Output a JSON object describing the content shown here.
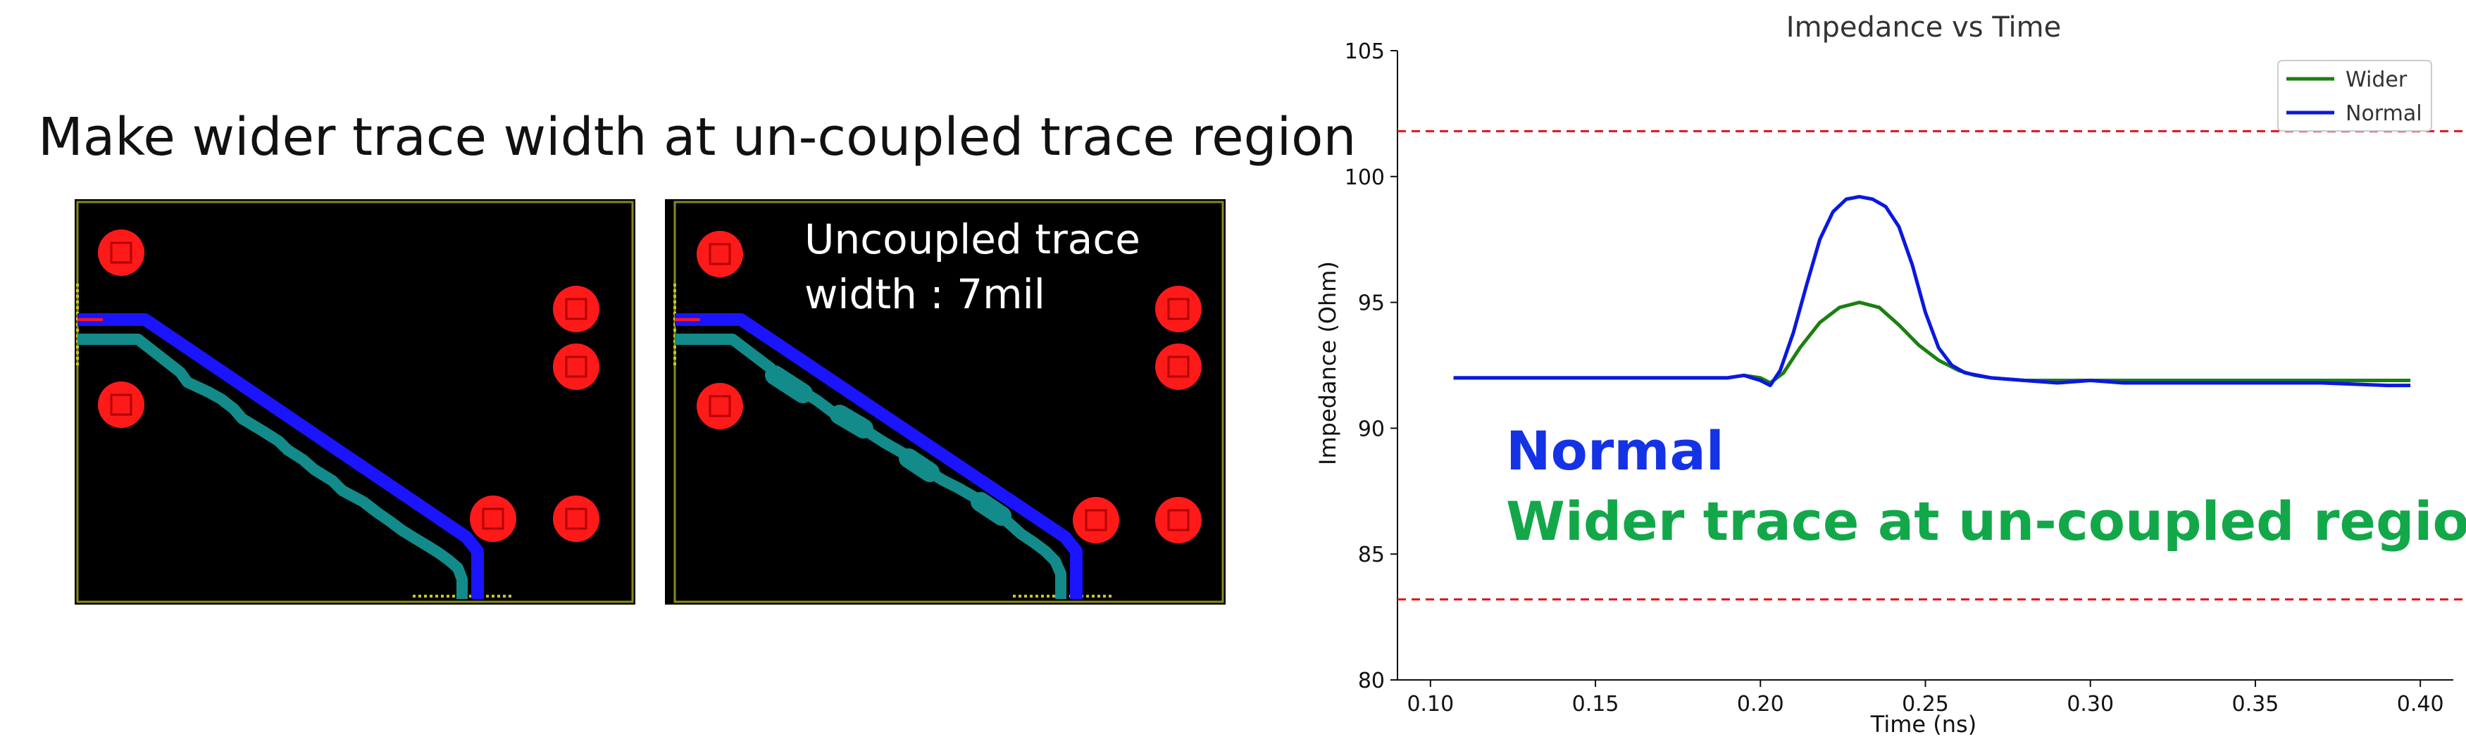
{
  "slide": {
    "title": "Make wider trace width at un-coupled trace region"
  },
  "pcb_views": [
    {
      "id": "left",
      "note": ""
    },
    {
      "id": "right",
      "note_line1": "Uncoupled trace",
      "note_line2": "width : 7mil"
    }
  ],
  "colors": {
    "pad": "#ff1a1a",
    "normal_trace": "#1a14ff",
    "wider_trace": "#138b8b",
    "board": "#000000",
    "outline": "#8a8a1a",
    "limit_line": "#e0141e",
    "series_wider": "#1b7f12",
    "series_normal": "#0b18e0",
    "label_normal": "#1432e6",
    "label_wider": "#12a849"
  },
  "chart_data": {
    "type": "line",
    "title": "Impedance vs Time",
    "xlabel": "Time (ns)",
    "ylabel": "Impedance (Ohm)",
    "xlim": [
      0.09,
      0.41
    ],
    "ylim": [
      80,
      105
    ],
    "xticks": [
      "0.10",
      "0.15",
      "0.20",
      "0.25",
      "0.30",
      "0.35",
      "0.40"
    ],
    "yticks": [
      "80",
      "85",
      "90",
      "95",
      "100",
      "105"
    ],
    "legend_position": "top-right",
    "grid": false,
    "reference_lines": [
      101.8,
      83.2
    ],
    "series": [
      {
        "name": "Wider",
        "x": [
          0.107,
          0.15,
          0.18,
          0.19,
          0.195,
          0.2,
          0.203,
          0.207,
          0.212,
          0.218,
          0.224,
          0.23,
          0.236,
          0.242,
          0.248,
          0.254,
          0.26,
          0.265,
          0.27,
          0.28,
          0.29,
          0.3,
          0.31,
          0.32,
          0.33,
          0.35,
          0.37,
          0.397
        ],
        "y": [
          92.0,
          92.0,
          92.0,
          92.0,
          92.1,
          92.0,
          91.8,
          92.2,
          93.2,
          94.2,
          94.8,
          95.0,
          94.8,
          94.1,
          93.3,
          92.7,
          92.3,
          92.1,
          92.0,
          91.9,
          91.9,
          91.9,
          91.9,
          91.9,
          91.9,
          91.9,
          91.9,
          91.9
        ]
      },
      {
        "name": "Normal",
        "x": [
          0.107,
          0.15,
          0.18,
          0.19,
          0.195,
          0.2,
          0.203,
          0.206,
          0.21,
          0.214,
          0.218,
          0.222,
          0.226,
          0.23,
          0.234,
          0.238,
          0.242,
          0.246,
          0.25,
          0.254,
          0.258,
          0.262,
          0.266,
          0.27,
          0.28,
          0.29,
          0.3,
          0.31,
          0.32,
          0.33,
          0.35,
          0.37,
          0.39,
          0.397
        ],
        "y": [
          92.0,
          92.0,
          92.0,
          92.0,
          92.1,
          91.9,
          91.7,
          92.3,
          93.8,
          95.7,
          97.5,
          98.6,
          99.1,
          99.2,
          99.1,
          98.8,
          98.0,
          96.5,
          94.6,
          93.2,
          92.5,
          92.2,
          92.1,
          92.0,
          91.9,
          91.8,
          91.9,
          91.8,
          91.8,
          91.8,
          91.8,
          91.8,
          91.7,
          91.7
        ]
      }
    ],
    "annotations": [
      {
        "text": "Normal",
        "color": "#1432e6"
      },
      {
        "text": "Wider trace at un-coupled region",
        "color": "#12a849"
      }
    ]
  }
}
